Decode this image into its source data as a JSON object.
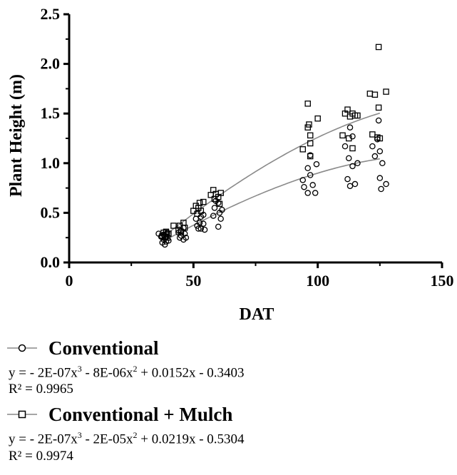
{
  "chart_data": {
    "type": "scatter",
    "xlabel": "DAT",
    "ylabel": "Plant Height (m)",
    "xlim": [
      0,
      150
    ],
    "ylim": [
      0,
      2.5
    ],
    "x_ticks": [
      "0",
      "50",
      "100",
      "150"
    ],
    "y_ticks": [
      "0.0",
      "0.5",
      "1.0",
      "1.5",
      "2.0",
      "2.5"
    ],
    "grid": false,
    "legend_position": "bottom",
    "series": [
      {
        "name": "Conventional",
        "marker": "circle",
        "equation_prefix": "y = - 2E-07x",
        "equation_mid": " - 8E-06x",
        "equation_suffix": " + 0.0152x - 0.3403",
        "r2": "R² = 0.9965",
        "coefficients": [
          -2e-07,
          -8e-06,
          0.0152,
          -0.3403
        ],
        "fit_range": [
          38,
          125
        ],
        "points": [
          [
            36,
            0.29
          ],
          [
            37,
            0.26
          ],
          [
            37.5,
            0.2
          ],
          [
            38,
            0.23
          ],
          [
            38,
            0.28
          ],
          [
            38.5,
            0.18
          ],
          [
            39,
            0.25
          ],
          [
            39,
            0.21
          ],
          [
            40,
            0.22
          ],
          [
            39.5,
            0.3
          ],
          [
            44,
            0.3
          ],
          [
            44.5,
            0.25
          ],
          [
            45,
            0.27
          ],
          [
            45,
            0.32
          ],
          [
            46,
            0.23
          ],
          [
            46.5,
            0.29
          ],
          [
            46,
            0.35
          ],
          [
            47,
            0.25
          ],
          [
            51,
            0.44
          ],
          [
            51.5,
            0.37
          ],
          [
            52,
            0.34
          ],
          [
            52.5,
            0.4
          ],
          [
            53,
            0.46
          ],
          [
            53,
            0.34
          ],
          [
            54,
            0.48
          ],
          [
            54,
            0.39
          ],
          [
            54.5,
            0.33
          ],
          [
            58,
            0.47
          ],
          [
            58.5,
            0.55
          ],
          [
            59,
            0.62
          ],
          [
            60,
            0.6
          ],
          [
            60,
            0.36
          ],
          [
            60.5,
            0.5
          ],
          [
            61,
            0.44
          ],
          [
            61.5,
            0.53
          ],
          [
            94,
            0.83
          ],
          [
            94.5,
            0.76
          ],
          [
            96,
            0.95
          ],
          [
            96,
            0.7
          ],
          [
            97,
            0.88
          ],
          [
            97,
            1.08
          ],
          [
            98,
            0.78
          ],
          [
            99,
            0.7
          ],
          [
            99.5,
            0.99
          ],
          [
            111,
            1.17
          ],
          [
            112,
            0.84
          ],
          [
            112.5,
            1.05
          ],
          [
            113,
            1.36
          ],
          [
            113,
            0.77
          ],
          [
            114,
            0.97
          ],
          [
            114,
            1.27
          ],
          [
            115,
            0.79
          ],
          [
            116,
            1.0
          ],
          [
            122,
            1.17
          ],
          [
            123,
            1.07
          ],
          [
            124,
            1.24
          ],
          [
            124.5,
            1.43
          ],
          [
            125,
            0.85
          ],
          [
            125,
            1.12
          ],
          [
            125.5,
            0.74
          ],
          [
            126,
            1.0
          ],
          [
            127.5,
            0.79
          ]
        ]
      },
      {
        "name": "Conventional + Mulch",
        "marker": "square",
        "equation_prefix": "y = - 2E-07x",
        "equation_mid": " - 2E-05x",
        "equation_suffix": " + 0.0219x - 0.5304",
        "r2": "R² = 0.9974",
        "coefficients": [
          -2e-07,
          -2e-05,
          0.0219,
          -0.5304
        ],
        "fit_range": [
          38,
          125
        ],
        "points": [
          [
            37.5,
            0.27
          ],
          [
            38,
            0.3
          ],
          [
            38.5,
            0.26
          ],
          [
            39,
            0.28
          ],
          [
            39,
            0.31
          ],
          [
            39.5,
            0.25
          ],
          [
            40,
            0.29
          ],
          [
            42,
            0.37
          ],
          [
            44,
            0.33
          ],
          [
            44.5,
            0.37
          ],
          [
            45,
            0.31
          ],
          [
            46,
            0.4
          ],
          [
            46.5,
            0.35
          ],
          [
            50,
            0.52
          ],
          [
            51,
            0.57
          ],
          [
            51.5,
            0.49
          ],
          [
            52,
            0.55
          ],
          [
            52.5,
            0.6
          ],
          [
            53,
            0.52
          ],
          [
            54,
            0.61
          ],
          [
            57,
            0.68
          ],
          [
            58,
            0.73
          ],
          [
            58.5,
            0.64
          ],
          [
            59,
            0.69
          ],
          [
            60,
            0.66
          ],
          [
            60.5,
            0.59
          ],
          [
            61,
            0.7
          ],
          [
            94,
            1.14
          ],
          [
            96,
            1.36
          ],
          [
            96,
            1.6
          ],
          [
            96.5,
            1.39
          ],
          [
            97,
            1.2
          ],
          [
            97,
            1.28
          ],
          [
            97,
            1.07
          ],
          [
            100,
            1.45
          ],
          [
            110,
            1.28
          ],
          [
            111,
            1.5
          ],
          [
            112,
            1.54
          ],
          [
            112.5,
            1.25
          ],
          [
            113,
            1.47
          ],
          [
            114,
            1.15
          ],
          [
            114,
            1.5
          ],
          [
            115,
            1.48
          ],
          [
            116,
            1.48
          ],
          [
            121,
            1.7
          ],
          [
            122,
            1.29
          ],
          [
            123,
            1.69
          ],
          [
            124,
            1.26
          ],
          [
            124.5,
            2.17
          ],
          [
            124.5,
            1.56
          ],
          [
            125,
            1.25
          ],
          [
            127.5,
            1.72
          ]
        ]
      }
    ]
  }
}
